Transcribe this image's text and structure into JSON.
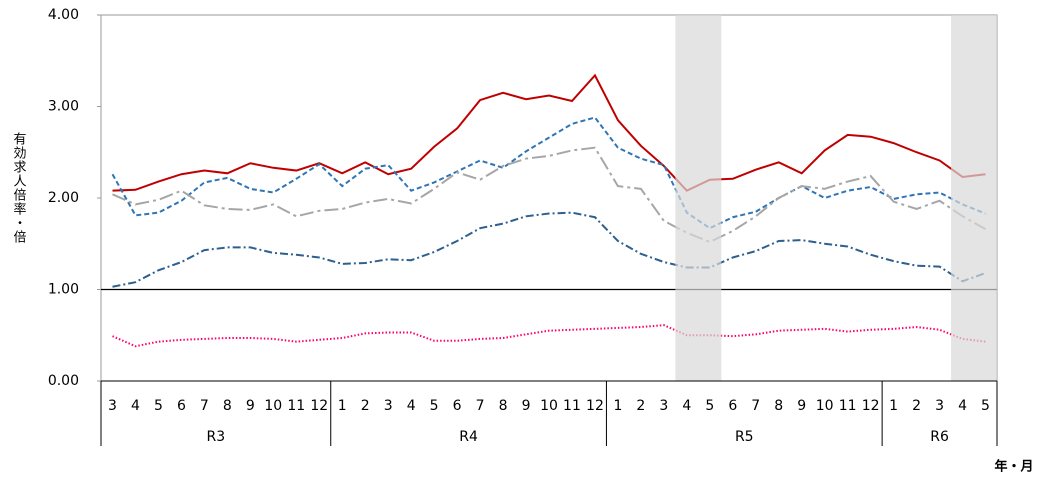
{
  "chart_data": {
    "type": "line",
    "y_label": "有効求人倍率・倍",
    "x_label": "年・月",
    "categories": [
      "3",
      "4",
      "5",
      "6",
      "7",
      "8",
      "9",
      "10",
      "11",
      "12",
      "1",
      "2",
      "3",
      "4",
      "5",
      "6",
      "7",
      "8",
      "9",
      "10",
      "11",
      "12",
      "1",
      "2",
      "3",
      "4",
      "5",
      "6",
      "7",
      "8",
      "9",
      "10",
      "11",
      "12",
      "1",
      "2",
      "3",
      "4",
      "5"
    ],
    "groups": [
      {
        "label": "R3",
        "count": 10
      },
      {
        "label": "R4",
        "count": 12
      },
      {
        "label": "R5",
        "count": 12
      },
      {
        "label": "R6",
        "count": 5
      }
    ],
    "shaded_ranges": [
      [
        25,
        26
      ],
      [
        37,
        38
      ]
    ],
    "reference_line": 1,
    "ylim": [
      0,
      4
    ],
    "yticks": [
      {
        "value": 0,
        "label": "0.00"
      },
      {
        "value": 1,
        "label": "1.00"
      },
      {
        "value": 2,
        "label": "2.00"
      },
      {
        "value": 3,
        "label": "3.00"
      },
      {
        "value": 4,
        "label": "4.00"
      }
    ],
    "series": [
      {
        "color": "#c00000",
        "dash": "none",
        "values": [
          2.08,
          2.09,
          2.18,
          2.26,
          2.3,
          2.27,
          2.38,
          2.33,
          2.3,
          2.38,
          2.27,
          2.39,
          2.26,
          2.32,
          2.56,
          2.76,
          3.07,
          3.15,
          3.08,
          3.12,
          3.06,
          3.34,
          2.85,
          2.57,
          2.35,
          2.08,
          2.2,
          2.21,
          2.31,
          2.39,
          2.27,
          2.52,
          2.69,
          2.67,
          2.6,
          2.5,
          2.41,
          2.23,
          2.26
        ]
      },
      {
        "color": "#2e75b6",
        "dash": "5 3",
        "values": [
          2.26,
          1.81,
          1.84,
          1.97,
          2.17,
          2.22,
          2.1,
          2.06,
          2.21,
          2.37,
          2.13,
          2.32,
          2.36,
          2.08,
          2.17,
          2.29,
          2.41,
          2.33,
          2.51,
          2.66,
          2.81,
          2.88,
          2.55,
          2.43,
          2.36,
          1.84,
          1.67,
          1.79,
          1.85,
          2.0,
          2.13,
          2.0,
          2.08,
          2.12,
          1.99,
          2.04,
          2.06,
          1.93,
          1.83
        ]
      },
      {
        "color": "#a6a6a6",
        "dash": "14 4 3 4",
        "values": [
          2.04,
          1.93,
          1.98,
          2.08,
          1.92,
          1.88,
          1.87,
          1.93,
          1.8,
          1.86,
          1.88,
          1.95,
          1.99,
          1.94,
          2.1,
          2.28,
          2.2,
          2.35,
          2.43,
          2.46,
          2.52,
          2.55,
          2.13,
          2.1,
          1.75,
          1.62,
          1.52,
          1.64,
          1.8,
          2.0,
          2.13,
          2.1,
          2.18,
          2.24,
          1.96,
          1.88,
          1.97,
          1.8,
          1.66
        ]
      },
      {
        "color": "#2e5f8e",
        "dash": "8 3 2 3",
        "values": [
          1.03,
          1.08,
          1.21,
          1.3,
          1.43,
          1.46,
          1.46,
          1.4,
          1.38,
          1.35,
          1.28,
          1.29,
          1.33,
          1.32,
          1.41,
          1.53,
          1.67,
          1.72,
          1.8,
          1.83,
          1.84,
          1.79,
          1.53,
          1.39,
          1.3,
          1.24,
          1.24,
          1.35,
          1.42,
          1.53,
          1.54,
          1.5,
          1.47,
          1.38,
          1.31,
          1.26,
          1.25,
          1.09,
          1.18
        ]
      },
      {
        "color": "#ff0066",
        "dash": "1.5 2",
        "values": [
          0.49,
          0.38,
          0.43,
          0.45,
          0.46,
          0.47,
          0.47,
          0.46,
          0.43,
          0.45,
          0.47,
          0.52,
          0.53,
          0.53,
          0.44,
          0.44,
          0.46,
          0.47,
          0.51,
          0.55,
          0.56,
          0.57,
          0.58,
          0.59,
          0.61,
          0.5,
          0.5,
          0.49,
          0.51,
          0.55,
          0.56,
          0.57,
          0.54,
          0.56,
          0.57,
          0.59,
          0.56,
          0.46,
          0.43
        ]
      }
    ]
  }
}
